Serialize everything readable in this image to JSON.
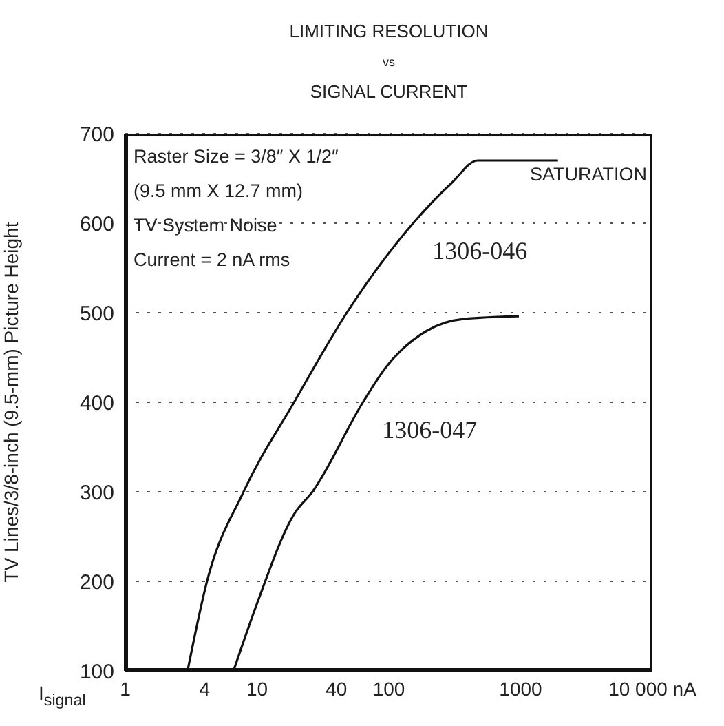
{
  "chart_data": {
    "type": "line",
    "title": "LIMITING RESOLUTION\nvs\nSIGNAL CURRENT",
    "xlabel": "I$_{signal}$",
    "ylabel": "TV Lines/3/8-inch (9.5-mm) Picture Height",
    "log": "x",
    "xlim": [
      1,
      10000
    ],
    "xticks": [
      1,
      4,
      10,
      40,
      100,
      1000,
      {
        "value": 10000,
        "label": "10 000 nA"
      }
    ],
    "ylim": [
      100,
      700
    ],
    "yticks": [
      100,
      200,
      300,
      400,
      500,
      600,
      700
    ],
    "grid": "y",
    "line_style": "solid",
    "marker": "none",
    "series": [
      {
        "name": "1306-046",
        "color": "#111111",
        "x": [
          2.97,
          4.17,
          7.9,
          19.1,
          48,
          153,
          300,
          472,
          1920
        ],
        "values": [
          100,
          200,
          300,
          400,
          500,
          600,
          645,
          670,
          670
        ]
      },
      {
        "name": "1306-047",
        "color": "#111111",
        "x": [
          6.63,
          10.1,
          19.1,
          26.3,
          63.6,
          95,
          195,
          369,
          970
        ],
        "values": [
          100,
          177,
          275,
          300,
          400,
          439,
          480,
          493,
          496
        ]
      }
    ],
    "annotations": [
      "Raster Size = 3/8″ X 1/2″",
      "(9.5 mm X 12.7 mm)",
      "TV System Noise",
      "Current = 2 nA rms",
      "SATURATION"
    ]
  }
}
